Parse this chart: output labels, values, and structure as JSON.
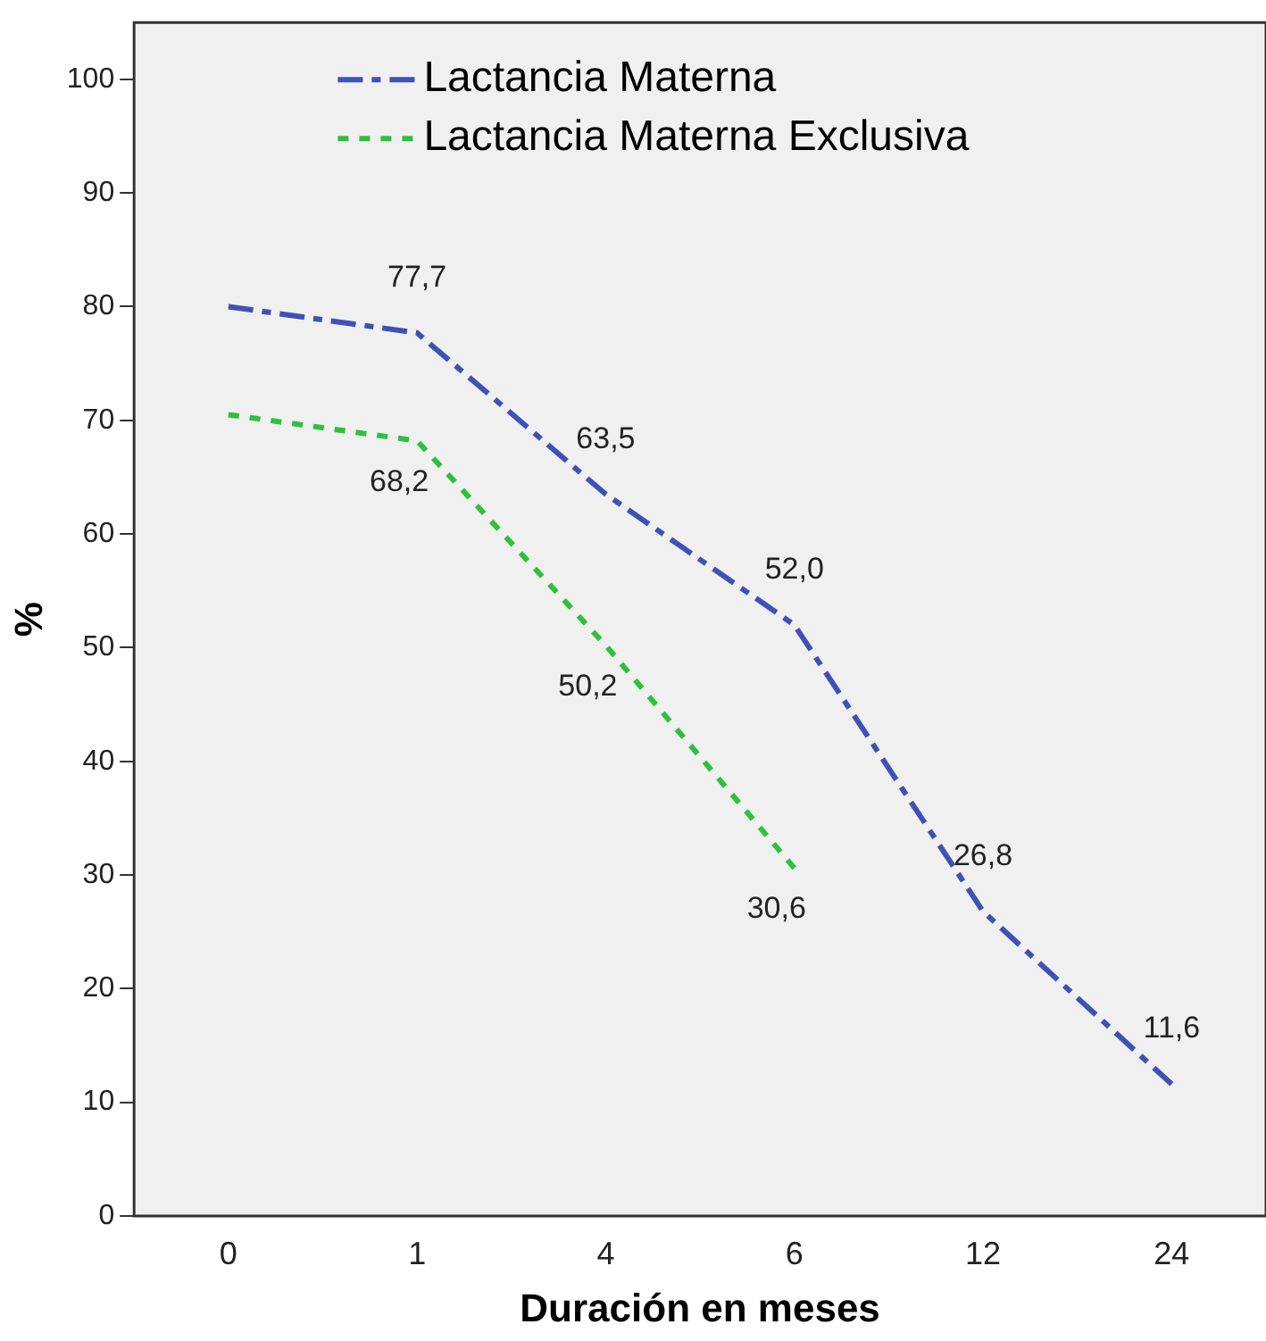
{
  "chart_data": {
    "type": "line",
    "xlabel": "Duración en meses",
    "ylabel": "%",
    "categories": [
      "0",
      "1",
      "4",
      "6",
      "12",
      "24"
    ],
    "series": [
      {
        "name": "Lactancia Materna",
        "color": "#3f51b5",
        "line_style": "dashed",
        "values": [
          80,
          77.7,
          63.5,
          52.0,
          26.8,
          11.6
        ],
        "value_labels": [
          null,
          "77,7",
          "63,5",
          "52,0",
          "26,8",
          "11,6"
        ]
      },
      {
        "name": "Lactancia Materna Exclusiva",
        "color": "#2ec13c",
        "line_style": "dotted",
        "values": [
          70.5,
          68.2,
          50.2,
          30.6,
          null,
          null
        ],
        "value_labels": [
          null,
          "68,2",
          "50,2",
          "30,6",
          null,
          null
        ]
      }
    ],
    "ylim": [
      0,
      105
    ],
    "yticks": [
      0,
      10,
      20,
      30,
      40,
      50,
      60,
      70,
      80,
      90,
      100
    ],
    "grid": false,
    "legend": "top",
    "marker": "none"
  }
}
